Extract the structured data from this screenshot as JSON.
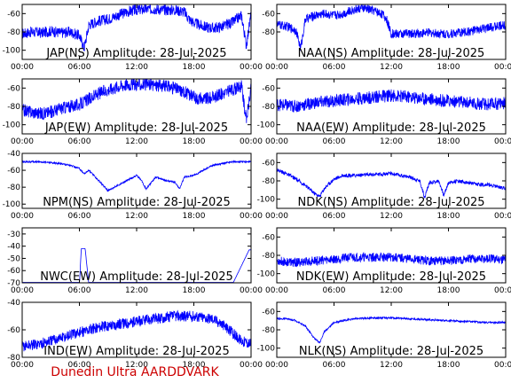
{
  "footer": {
    "text": "Dunedin Ultra AARDDVARK",
    "color": "#cc0000"
  },
  "line_color": "#0000ff",
  "x_tick_labels": [
    "00:00",
    "06:00",
    "12:00",
    "18:00",
    "00:00"
  ],
  "chart_data": [
    {
      "type": "line",
      "title": "JAP(NS) Amplitude: 28-Jul-2025",
      "ylim": [
        -110,
        -50
      ],
      "yticks": [
        -100,
        -80,
        -60
      ],
      "xlim": [
        0,
        24
      ],
      "x": [
        0,
        1,
        2,
        3,
        4,
        5,
        6,
        6.5,
        7,
        8,
        9,
        10,
        11,
        12,
        13,
        14,
        15,
        16,
        17,
        17.5,
        18,
        19,
        20,
        21,
        22,
        23,
        23.5,
        24
      ],
      "y": [
        -82,
        -80,
        -81,
        -79,
        -81,
        -80,
        -84,
        -98,
        -72,
        -68,
        -66,
        -62,
        -58,
        -56,
        -55,
        -55,
        -56,
        -56,
        -58,
        -66,
        -70,
        -74,
        -76,
        -74,
        -70,
        -62,
        -95,
        -60
      ],
      "noise": 6
    },
    {
      "type": "line",
      "title": "NAA(NS) Amplitude: 28-Jul-2025",
      "ylim": [
        -110,
        -50
      ],
      "yticks": [
        -80,
        -60
      ],
      "xlim": [
        0,
        24
      ],
      "x": [
        0,
        1,
        2,
        2.5,
        3,
        4,
        5,
        6,
        7,
        8,
        9,
        10,
        11,
        11.5,
        12,
        14,
        16,
        18,
        20,
        22,
        23,
        24
      ],
      "y": [
        -72,
        -74,
        -78,
        -98,
        -66,
        -62,
        -60,
        -62,
        -60,
        -56,
        -54,
        -56,
        -60,
        -66,
        -82,
        -82,
        -81,
        -82,
        -80,
        -76,
        -74,
        -72
      ],
      "noise": 5
    },
    {
      "type": "line",
      "title": "JAP(EW) Amplitude: 28-Jul-2025",
      "ylim": [
        -110,
        -50
      ],
      "yticks": [
        -100,
        -80,
        -60
      ],
      "xlim": [
        0,
        24
      ],
      "x": [
        0,
        1,
        2,
        3,
        4,
        5,
        6,
        7,
        8,
        9,
        10,
        11,
        12,
        13,
        14,
        15,
        16,
        17,
        18,
        19,
        20,
        21,
        22,
        23,
        23.5,
        24
      ],
      "y": [
        -84,
        -86,
        -88,
        -86,
        -82,
        -80,
        -78,
        -72,
        -66,
        -62,
        -58,
        -56,
        -56,
        -56,
        -57,
        -58,
        -60,
        -64,
        -70,
        -72,
        -70,
        -66,
        -62,
        -58,
        -95,
        -60
      ],
      "noise": 7
    },
    {
      "type": "line",
      "title": "NAA(EW) Amplitude: 28-Jul-2025",
      "ylim": [
        -110,
        -50
      ],
      "yticks": [
        -100,
        -80,
        -60
      ],
      "xlim": [
        0,
        24
      ],
      "x": [
        0,
        2,
        4,
        6,
        8,
        10,
        12,
        14,
        16,
        18,
        20,
        22,
        24
      ],
      "y": [
        -78,
        -80,
        -76,
        -74,
        -72,
        -70,
        -68,
        -70,
        -72,
        -74,
        -76,
        -78,
        -76
      ],
      "noise": 7
    },
    {
      "type": "line",
      "title": "NPM(NS) Amplitude: 28-Jul-2025",
      "ylim": [
        -105,
        -40
      ],
      "yticks": [
        -100,
        -80,
        -60,
        -40
      ],
      "xlim": [
        0,
        24
      ],
      "x": [
        0,
        1,
        2,
        3,
        4,
        5,
        6,
        6.5,
        7,
        8,
        9,
        10,
        11,
        12,
        12.5,
        13,
        14,
        15,
        16,
        16.5,
        17,
        18,
        19,
        20,
        21,
        22,
        23,
        24
      ],
      "y": [
        -50,
        -50,
        -50,
        -51,
        -52,
        -54,
        -58,
        -64,
        -60,
        -72,
        -84,
        -78,
        -72,
        -66,
        -72,
        -82,
        -68,
        -72,
        -74,
        -82,
        -68,
        -66,
        -60,
        -54,
        -52,
        -50,
        -50,
        -50
      ],
      "noise": 1
    },
    {
      "type": "line",
      "title": "NDK(NS) Amplitude: 28-Jul-2025",
      "ylim": [
        -110,
        -50
      ],
      "yticks": [
        -100,
        -80,
        -60
      ],
      "xlim": [
        0,
        24
      ],
      "x": [
        0,
        1,
        2,
        3,
        4,
        4.5,
        5,
        6,
        7,
        8,
        10,
        12,
        14,
        15,
        15.5,
        16,
        17,
        17.5,
        18,
        19,
        20,
        21,
        22,
        23,
        24
      ],
      "y": [
        -68,
        -72,
        -78,
        -85,
        -94,
        -97,
        -88,
        -78,
        -74,
        -74,
        -73,
        -72,
        -76,
        -80,
        -98,
        -82,
        -80,
        -96,
        -82,
        -80,
        -82,
        -84,
        -84,
        -86,
        -88
      ],
      "noise": 2
    },
    {
      "type": "line",
      "title": "NWC(EW) Amplitude: 28-Jul-2025",
      "ylim": [
        -70,
        -25
      ],
      "yticks": [
        -70,
        -60,
        -50,
        -40,
        -30
      ],
      "xlim": [
        0,
        24
      ],
      "x": [
        0,
        2,
        4,
        6,
        6.2,
        6.6,
        7,
        8,
        10,
        12,
        14,
        16,
        18,
        20,
        22,
        23.8,
        24
      ],
      "y": [
        -72,
        -72,
        -72,
        -72,
        -42,
        -42,
        -72,
        -72,
        -72,
        -72,
        -72,
        -72,
        -72,
        -72,
        -72,
        -43,
        -43
      ],
      "noise": 0
    },
    {
      "type": "line",
      "title": "NDK(EW) Amplitude: 28-Jul-2025",
      "ylim": [
        -110,
        -50
      ],
      "yticks": [
        -100,
        -80,
        -60
      ],
      "xlim": [
        0,
        24
      ],
      "x": [
        0,
        2,
        4,
        6,
        8,
        10,
        12,
        14,
        16,
        18,
        20,
        22,
        24
      ],
      "y": [
        -86,
        -88,
        -86,
        -84,
        -82,
        -82,
        -82,
        -84,
        -86,
        -86,
        -84,
        -84,
        -84
      ],
      "noise": 5
    },
    {
      "type": "line",
      "title": "IND(EW) Amplitude: 28-Jul-2025",
      "ylim": [
        -80,
        -40
      ],
      "yticks": [
        -80,
        -60,
        -40
      ],
      "xlim": [
        0,
        24
      ],
      "x": [
        0,
        2,
        4,
        6,
        8,
        10,
        12,
        14,
        16,
        18,
        20,
        21,
        22,
        23,
        24
      ],
      "y": [
        -72,
        -70,
        -66,
        -62,
        -58,
        -56,
        -54,
        -52,
        -50,
        -50,
        -52,
        -56,
        -62,
        -68,
        -70
      ],
      "noise": 4
    },
    {
      "type": "line",
      "title": "NLK(NS) Amplitude: 28-Jul-2025",
      "ylim": [
        -110,
        -50
      ],
      "yticks": [
        -100,
        -80,
        -60
      ],
      "xlim": [
        0,
        24
      ],
      "x": [
        0,
        1,
        2,
        3,
        4,
        4.5,
        5,
        6,
        8,
        10,
        12,
        14,
        16,
        18,
        20,
        22,
        24
      ],
      "y": [
        -68,
        -68,
        -70,
        -76,
        -90,
        -94,
        -82,
        -72,
        -68,
        -67,
        -67,
        -68,
        -69,
        -70,
        -71,
        -72,
        -72
      ],
      "noise": 1
    }
  ]
}
